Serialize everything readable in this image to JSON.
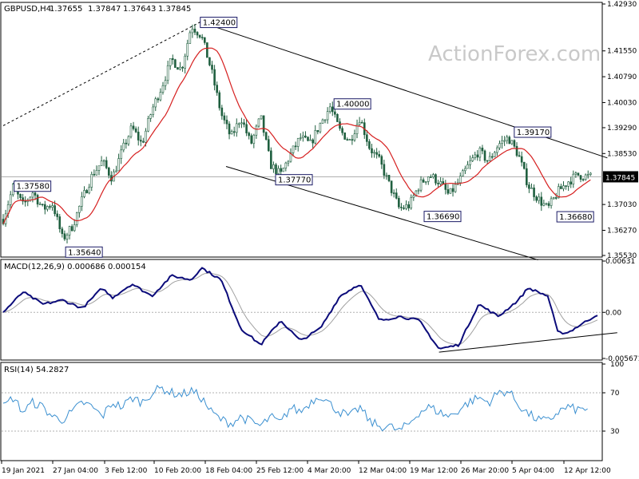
{
  "watermark": "ActionForex.com",
  "chart_data": [
    {
      "type": "candlestick",
      "title": "GBPUSD,H4",
      "ohlc_readout": [
        "1.37655",
        "1.37847",
        "1.37643",
        "1.37845"
      ],
      "current_price": "1.37845",
      "ylim": [
        1.3553,
        1.4293
      ],
      "y_ticks": [
        "1.42930",
        "1.41550",
        "1.40790",
        "1.40030",
        "1.39290",
        "1.38530",
        "1.37845",
        "1.37030",
        "1.36270",
        "1.35530"
      ],
      "x_ticks": [
        "19 Jan 2021",
        "27 Jan 04:00",
        "3 Feb 12:00",
        "10 Feb 20:00",
        "18 Feb 04:00",
        "25 Feb 12:00",
        "4 Mar 20:00",
        "12 Mar 04:00",
        "19 Mar 12:00",
        "26 Mar 20:00",
        "5 Apr 04:00",
        "12 Apr 12:00"
      ],
      "annotations": [
        {
          "text": "1.42400",
          "x": 19.9,
          "y": 1.424
        },
        {
          "text": "1.37580",
          "x": 1.1,
          "y": 1.3758
        },
        {
          "text": "1.35640",
          "x": 6.3,
          "y": 1.3564
        },
        {
          "text": "1.37770",
          "x": 27.5,
          "y": 1.3777
        },
        {
          "text": "1.40000",
          "x": 33.4,
          "y": 1.4
        },
        {
          "text": "1.36690",
          "x": 42.5,
          "y": 1.3669
        },
        {
          "text": "1.39170",
          "x": 51.6,
          "y": 1.3917
        },
        {
          "text": "1.36680",
          "x": 55.9,
          "y": 1.3668
        }
      ],
      "waypoints": [
        [
          0,
          1.366
        ],
        [
          1,
          1.3755
        ],
        [
          2,
          1.37
        ],
        [
          3,
          1.374
        ],
        [
          4,
          1.369
        ],
        [
          5,
          1.3705
        ],
        [
          6,
          1.36
        ],
        [
          7,
          1.364
        ],
        [
          8,
          1.372
        ],
        [
          9,
          1.379
        ],
        [
          10,
          1.383
        ],
        [
          11,
          1.378
        ],
        [
          12,
          1.386
        ],
        [
          13,
          1.393
        ],
        [
          14,
          1.388
        ],
        [
          15,
          1.398
        ],
        [
          16,
          1.405
        ],
        [
          17,
          1.413
        ],
        [
          18,
          1.41
        ],
        [
          19,
          1.423
        ],
        [
          20,
          1.42
        ],
        [
          21,
          1.41
        ],
        [
          22,
          1.397
        ],
        [
          23,
          1.39
        ],
        [
          24,
          1.396
        ],
        [
          25,
          1.388
        ],
        [
          26,
          1.396
        ],
        [
          27,
          1.382
        ],
        [
          28,
          1.379
        ],
        [
          29,
          1.385
        ],
        [
          30,
          1.39
        ],
        [
          31,
          1.388
        ],
        [
          32,
          1.394
        ],
        [
          33,
          1.399
        ],
        [
          34,
          1.392
        ],
        [
          35,
          1.389
        ],
        [
          36,
          1.396
        ],
        [
          37,
          1.387
        ],
        [
          38,
          1.383
        ],
        [
          39,
          1.376
        ],
        [
          40,
          1.369
        ],
        [
          41,
          1.37
        ],
        [
          42,
          1.376
        ],
        [
          43,
          1.379
        ],
        [
          44,
          1.377
        ],
        [
          45,
          1.373
        ],
        [
          46,
          1.377
        ],
        [
          47,
          1.382
        ],
        [
          48,
          1.386
        ],
        [
          49,
          1.383
        ],
        [
          50,
          1.388
        ],
        [
          51,
          1.39
        ],
        [
          52,
          1.385
        ],
        [
          53,
          1.376
        ],
        [
          54,
          1.372
        ],
        [
          55,
          1.369
        ],
        [
          56,
          1.374
        ],
        [
          57,
          1.377
        ],
        [
          58,
          1.379
        ],
        [
          59,
          1.3785
        ]
      ],
      "dotted_line": [
        [
          0,
          1.3935
        ],
        [
          19.9,
          1.424
        ]
      ],
      "channel_upper": [
        [
          19.9,
          1.424
        ],
        [
          61,
          1.384
        ]
      ],
      "channel_lower": [
        [
          22.5,
          1.3815
        ],
        [
          54,
          1.354
        ]
      ],
      "moving_average_color": "#d62020",
      "candle_color": "#1f5f3f"
    },
    {
      "type": "line",
      "title": "MACD(12,26,9) 0.000686 0.000154",
      "ylim": [
        -0.00567,
        0.00631
      ],
      "y_ticks": [
        "0.00631",
        "0.00",
        "-0.005671"
      ],
      "macd_color": "#0b0b7a",
      "signal_color": "#a0a0a0",
      "trendline": [
        [
          44,
          -0.0049
        ],
        [
          62,
          -0.0025
        ]
      ],
      "waypoints": [
        [
          0,
          0.0
        ],
        [
          2,
          0.0025
        ],
        [
          4,
          0.001
        ],
        [
          6,
          0.0015
        ],
        [
          8,
          0.0005
        ],
        [
          10,
          0.003
        ],
        [
          11,
          0.0018
        ],
        [
          13,
          0.0035
        ],
        [
          15,
          0.002
        ],
        [
          17,
          0.0045
        ],
        [
          19,
          0.004
        ],
        [
          20,
          0.0055
        ],
        [
          22,
          0.004
        ],
        [
          24,
          -0.002
        ],
        [
          26,
          -0.004
        ],
        [
          28,
          -0.001
        ],
        [
          30,
          -0.0035
        ],
        [
          32,
          -0.002
        ],
        [
          34,
          0.002
        ],
        [
          36,
          0.0035
        ],
        [
          38,
          -0.001
        ],
        [
          40,
          -0.0005
        ],
        [
          42,
          -0.001
        ],
        [
          44,
          -0.0045
        ],
        [
          46,
          -0.004
        ],
        [
          48,
          0.001
        ],
        [
          50,
          -0.0005
        ],
        [
          52,
          0.0015
        ],
        [
          53,
          0.003
        ],
        [
          55,
          0.002
        ],
        [
          56,
          -0.0025
        ],
        [
          57,
          -0.0025
        ],
        [
          59,
          -0.001
        ],
        [
          61,
          0.0005
        ]
      ]
    },
    {
      "type": "line",
      "title": "RSI(14) 54.2827",
      "ylim": [
        0,
        100
      ],
      "y_ticks": [
        "100",
        "70",
        "30",
        "0"
      ],
      "levels": [
        70,
        30
      ],
      "rsi_color": "#3a8fd0",
      "waypoints": [
        [
          0,
          55
        ],
        [
          1,
          65
        ],
        [
          2,
          50
        ],
        [
          3,
          60
        ],
        [
          4,
          55
        ],
        [
          5,
          45
        ],
        [
          6,
          42
        ],
        [
          7,
          50
        ],
        [
          8,
          60
        ],
        [
          9,
          55
        ],
        [
          10,
          45
        ],
        [
          11,
          60
        ],
        [
          12,
          55
        ],
        [
          13,
          65
        ],
        [
          14,
          60
        ],
        [
          15,
          70
        ],
        [
          16,
          75
        ],
        [
          17,
          70
        ],
        [
          18,
          68
        ],
        [
          19,
          72
        ],
        [
          20,
          65
        ],
        [
          21,
          50
        ],
        [
          22,
          42
        ],
        [
          23,
          38
        ],
        [
          24,
          45
        ],
        [
          25,
          40
        ],
        [
          26,
          35
        ],
        [
          27,
          45
        ],
        [
          28,
          38
        ],
        [
          29,
          55
        ],
        [
          30,
          50
        ],
        [
          31,
          60
        ],
        [
          32,
          68
        ],
        [
          33,
          58
        ],
        [
          34,
          50
        ],
        [
          35,
          45
        ],
        [
          36,
          55
        ],
        [
          37,
          40
        ],
        [
          38,
          35
        ],
        [
          39,
          35
        ],
        [
          40,
          30
        ],
        [
          41,
          38
        ],
        [
          42,
          50
        ],
        [
          43,
          55
        ],
        [
          44,
          50
        ],
        [
          45,
          45
        ],
        [
          46,
          52
        ],
        [
          47,
          60
        ],
        [
          48,
          65
        ],
        [
          49,
          60
        ],
        [
          50,
          70
        ],
        [
          51,
          72
        ],
        [
          52,
          58
        ],
        [
          53,
          48
        ],
        [
          54,
          42
        ],
        [
          55,
          40
        ],
        [
          56,
          50
        ],
        [
          57,
          55
        ],
        [
          58,
          52
        ],
        [
          59,
          54
        ]
      ]
    }
  ]
}
